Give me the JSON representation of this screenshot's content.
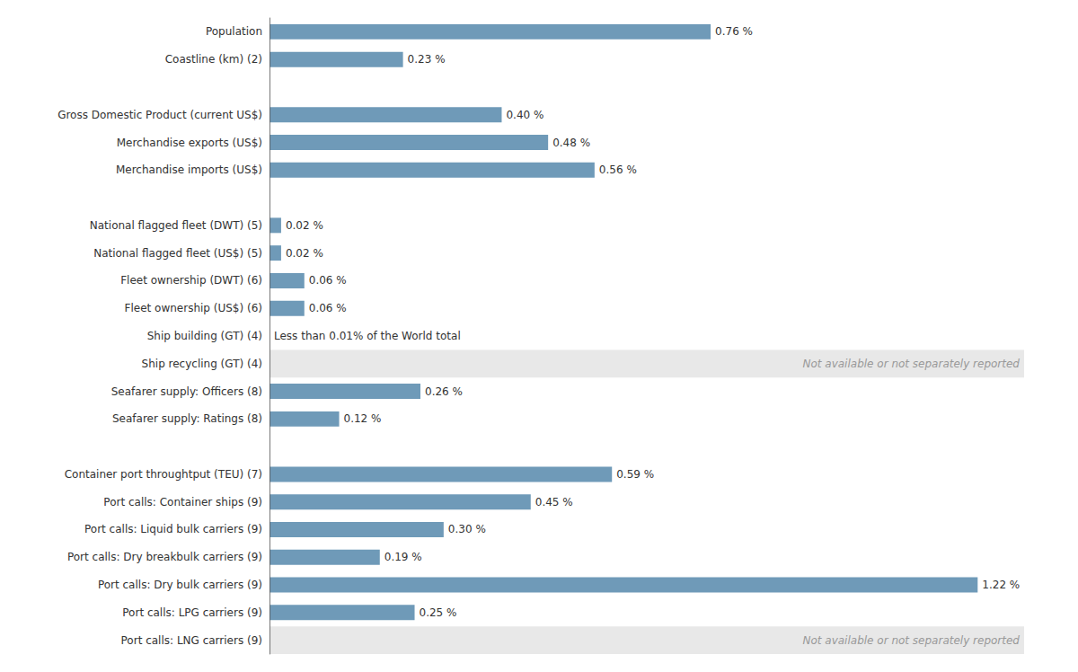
{
  "chart_data": {
    "type": "bar",
    "orientation": "horizontal",
    "categories": [
      "Port calls: LNG carriers (9)",
      "Port calls: LPG carriers (9)",
      "Port calls: Dry bulk carriers (9)",
      "Port calls: Dry breakbulk carriers (9)",
      "Port calls: Liquid bulk carriers (9)",
      "Port calls: Container ships (9)",
      "Container port throughtput (TEU) (7)",
      null,
      "Seafarer supply: Ratings (8)",
      "Seafarer supply: Officers (8)",
      "Ship recycling (GT) (4)",
      "Ship building (GT) (4)",
      "Fleet ownership (US$) (6)",
      "Fleet ownership (DWT) (6)",
      "National flagged fleet (US$) (5)",
      "National flagged fleet (DWT) (5)",
      null,
      "Merchandise imports (US$)",
      "Merchandise exports (US$)",
      "Gross Domestic Product (current US$)",
      null,
      "Coastline (km) (2)",
      "Population"
    ],
    "values": [
      null,
      0.25,
      1.22,
      0.19,
      0.3,
      0.45,
      0.59,
      null,
      0.12,
      0.26,
      null,
      0.0,
      0.06,
      0.06,
      0.02,
      0.02,
      null,
      0.56,
      0.48,
      0.4,
      null,
      0.23,
      0.76
    ],
    "value_labels": [
      null,
      "0.25 %",
      "1.22 %",
      "0.19 %",
      "0.30 %",
      "0.45 %",
      "0.59 %",
      null,
      "0.12 %",
      "0.26 %",
      null,
      "Less than 0.01% of the World total",
      "0.06 %",
      "0.06 %",
      "0.02 %",
      "0.02 %",
      null,
      "0.56 %",
      "0.48 %",
      "0.40 %",
      null,
      "0.23 %",
      "0.76 %"
    ],
    "color": "#6f9ab8",
    "data_labels": true,
    "xlim": [
      0,
      1.3
    ],
    "xticks": [],
    "grid": false,
    "tick_labels": "y",
    "annotations": [
      {
        "category": "Port calls: LNG carriers (9)",
        "text": "Not available or not separately reported",
        "color": "#e8e8e8"
      },
      {
        "category": "Ship recycling (GT) (4)",
        "text": "Not available or not separately reported",
        "color": "#e8e8e8"
      }
    ]
  }
}
